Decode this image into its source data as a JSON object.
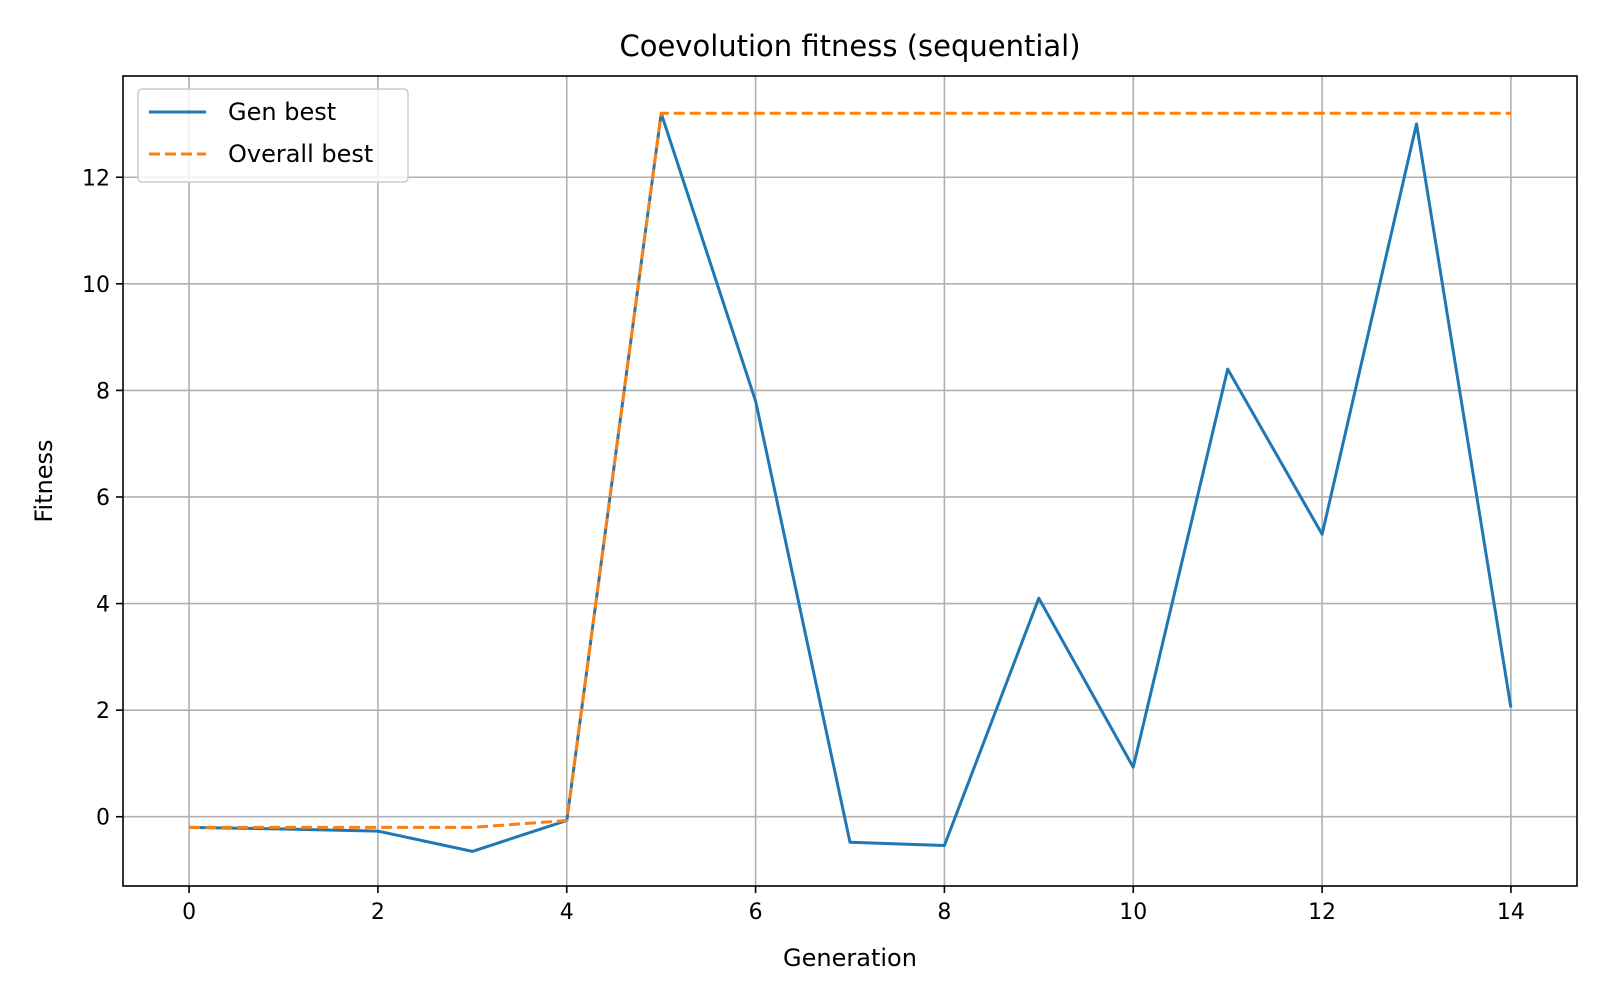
{
  "chart_data": {
    "type": "line",
    "title": "Coevolution fitness (sequential)",
    "xlabel": "Generation",
    "ylabel": "Fitness",
    "x": [
      0,
      1,
      2,
      3,
      4,
      5,
      6,
      7,
      8,
      9,
      10,
      11,
      12,
      13,
      14
    ],
    "xlim": [
      -0.7,
      14.7
    ],
    "ylim": [
      -1.3,
      13.9
    ],
    "xticks": [
      "0",
      "2",
      "4",
      "6",
      "8",
      "10",
      "12",
      "14"
    ],
    "yticks": [
      "0",
      "2",
      "4",
      "6",
      "8",
      "10",
      "12"
    ],
    "grid": true,
    "legend_position": "top-left",
    "series": [
      {
        "name": "Gen best",
        "color": "#1f77b4",
        "linestyle": "solid",
        "values": [
          -0.2,
          -0.23,
          -0.27,
          -0.65,
          -0.07,
          13.2,
          7.8,
          -0.48,
          -0.54,
          4.1,
          0.93,
          8.4,
          5.3,
          13.0,
          2.05
        ]
      },
      {
        "name": "Overall best",
        "color": "#ff7f0e",
        "linestyle": "dashed",
        "values": [
          -0.2,
          -0.2,
          -0.2,
          -0.2,
          -0.07,
          13.2,
          13.2,
          13.2,
          13.2,
          13.2,
          13.2,
          13.2,
          13.2,
          13.2,
          13.2
        ]
      }
    ]
  }
}
